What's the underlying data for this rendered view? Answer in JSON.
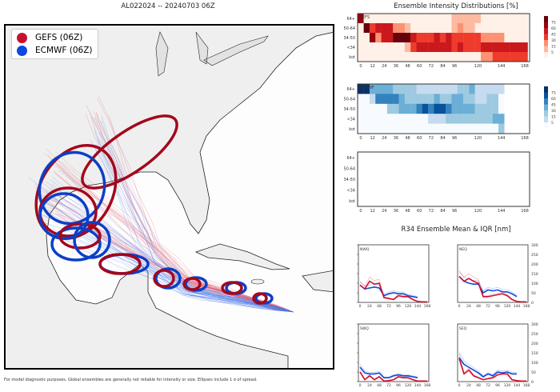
{
  "title": "AL022024 -- 20240703 06Z",
  "footer": "For model diagnostic purposes. Global ensembles are generally not reliable for intensity or size. Ellipses include 1 σ of spread.",
  "legend": [
    {
      "label": "GEFS (06Z)",
      "color": "#c8102e"
    },
    {
      "label": "ECMWF (06Z)",
      "color": "#0b49e0"
    }
  ],
  "intensity_title": "Ensemble Intensity Distributions [%]",
  "r34_title": "R34 Ensemble Mean & IQR [nm]",
  "chart_data": [
    {
      "type": "heatmap",
      "name": "GEFS",
      "rows": [
        "64+",
        "50-64",
        "34-50",
        "<34",
        "kot"
      ],
      "xticks": [
        0,
        12,
        24,
        36,
        48,
        60,
        72,
        84,
        96,
        120,
        144,
        168
      ],
      "x_step": 6,
      "colorbar": [
        5,
        15,
        30,
        45,
        60,
        75
      ],
      "colors": [
        "#fff0e8",
        "#fcbba1",
        "#fc9272",
        "#ef3b2c",
        "#cb181d",
        "#99000d",
        "#67000d"
      ],
      "values": [
        [
          60,
          3,
          3,
          3,
          3,
          3,
          3,
          3,
          3,
          3,
          3,
          3,
          3,
          3,
          3,
          3,
          10,
          10,
          10,
          10,
          10,
          3,
          3,
          3,
          3,
          3,
          3,
          3,
          3
        ],
        [
          3,
          75,
          30,
          55,
          45,
          45,
          20,
          20,
          10,
          3,
          3,
          3,
          3,
          3,
          3,
          3,
          10,
          20,
          10,
          10,
          3,
          3,
          3,
          3,
          3,
          3,
          3,
          3,
          3
        ],
        [
          3,
          3,
          60,
          20,
          45,
          45,
          75,
          75,
          75,
          45,
          30,
          30,
          30,
          45,
          30,
          50,
          30,
          30,
          30,
          30,
          30,
          20,
          20,
          15,
          15,
          3,
          3,
          3,
          3
        ],
        [
          3,
          3,
          3,
          3,
          3,
          3,
          3,
          3,
          10,
          30,
          45,
          45,
          45,
          45,
          55,
          45,
          30,
          45,
          30,
          30,
          30,
          45,
          45,
          55,
          55,
          55,
          55,
          55,
          45
        ],
        [
          3,
          3,
          3,
          3,
          3,
          3,
          3,
          3,
          3,
          3,
          3,
          3,
          3,
          3,
          3,
          3,
          3,
          3,
          3,
          3,
          3,
          20,
          20,
          30,
          30,
          30,
          30,
          30,
          30
        ]
      ]
    },
    {
      "type": "heatmap",
      "name": "ECMWF",
      "rows": [
        "64+",
        "50-64",
        "34-50",
        "<34",
        "kot"
      ],
      "xticks": [
        0,
        12,
        24,
        36,
        48,
        60,
        72,
        84,
        96,
        120,
        144,
        168
      ],
      "x_step": 6,
      "colorbar": [
        5,
        15,
        30,
        45,
        60,
        75
      ],
      "colors": [
        "#f7fbff",
        "#c6dbef",
        "#9ecae1",
        "#6baed6",
        "#3182bd",
        "#08519c",
        "#08306b"
      ],
      "values": [
        [
          75,
          75,
          30,
          30,
          30,
          30,
          20,
          20,
          20,
          20,
          10,
          10,
          10,
          10,
          10,
          10,
          10,
          20,
          20,
          30,
          10,
          10,
          10,
          10,
          10
        ],
        [
          3,
          3,
          10,
          45,
          45,
          45,
          45,
          30,
          20,
          20,
          20,
          20,
          20,
          30,
          20,
          20,
          30,
          30,
          20,
          20,
          10,
          10,
          15,
          15,
          3
        ],
        [
          3,
          3,
          3,
          3,
          3,
          20,
          20,
          40,
          30,
          30,
          45,
          60,
          45,
          60,
          60,
          45,
          30,
          30,
          30,
          30,
          20,
          20,
          20,
          20,
          3
        ],
        [
          3,
          3,
          3,
          3,
          3,
          3,
          3,
          3,
          3,
          3,
          3,
          3,
          10,
          10,
          10,
          15,
          15,
          15,
          15,
          15,
          15,
          15,
          15,
          30,
          30
        ],
        [
          3,
          3,
          3,
          3,
          3,
          3,
          3,
          3,
          3,
          3,
          3,
          3,
          3,
          3,
          3,
          3,
          3,
          3,
          3,
          3,
          3,
          3,
          3,
          3,
          15
        ]
      ]
    },
    {
      "type": "heatmap",
      "name": "",
      "rows": [
        "64+",
        "50-64",
        "34-50",
        "<34",
        "kot"
      ],
      "xticks": [
        0,
        12,
        24,
        36,
        48,
        60,
        72,
        84,
        96,
        120,
        144,
        168
      ],
      "values": []
    },
    {
      "type": "line",
      "panels": [
        {
          "name": "NWQ",
          "x": [
            0,
            12,
            24,
            36,
            48,
            60,
            72,
            84,
            96,
            108,
            120,
            132,
            144,
            156,
            168
          ],
          "gefs": [
            90,
            70,
            110,
            95,
            100,
            25,
            20,
            15,
            35,
            30,
            30,
            15,
            5,
            3,
            3
          ],
          "ecmwf": [
            90,
            70,
            75,
            80,
            75,
            35,
            45,
            50,
            45,
            45,
            35,
            30,
            25
          ]
        },
        {
          "name": "NEQ",
          "x": [
            0,
            12,
            24,
            36,
            48,
            60,
            72,
            84,
            96,
            108,
            120,
            132,
            144,
            156,
            168
          ],
          "gefs": [
            135,
            110,
            125,
            110,
            100,
            30,
            30,
            35,
            40,
            45,
            35,
            15,
            5,
            3,
            3
          ],
          "ecmwf": [
            135,
            110,
            100,
            95,
            95,
            50,
            65,
            60,
            65,
            55,
            55,
            45,
            30
          ]
        },
        {
          "name": "SWQ",
          "x": [
            0,
            12,
            24,
            36,
            48,
            60,
            72,
            84,
            96,
            108,
            120,
            132,
            144,
            156,
            168
          ],
          "gefs": [
            50,
            10,
            30,
            10,
            25,
            3,
            5,
            10,
            25,
            20,
            20,
            10,
            3,
            3,
            3
          ],
          "ecmwf": [
            75,
            45,
            40,
            40,
            45,
            20,
            20,
            30,
            35,
            30,
            30,
            25,
            20
          ]
        },
        {
          "name": "SEQ",
          "x": [
            0,
            12,
            24,
            36,
            48,
            60,
            72,
            84,
            96,
            108,
            120,
            132,
            144,
            156,
            168
          ],
          "gefs": [
            120,
            40,
            60,
            30,
            20,
            10,
            15,
            20,
            35,
            40,
            40,
            10,
            5,
            3,
            3
          ],
          "ecmwf": [
            125,
            90,
            75,
            60,
            45,
            25,
            40,
            30,
            50,
            45,
            50,
            40,
            40
          ]
        }
      ],
      "xticks": [
        0,
        24,
        48,
        72,
        96,
        120,
        144,
        168
      ],
      "yticks": [
        0,
        50,
        100,
        150,
        200,
        250,
        300
      ],
      "ylim": [
        0,
        300
      ]
    }
  ]
}
